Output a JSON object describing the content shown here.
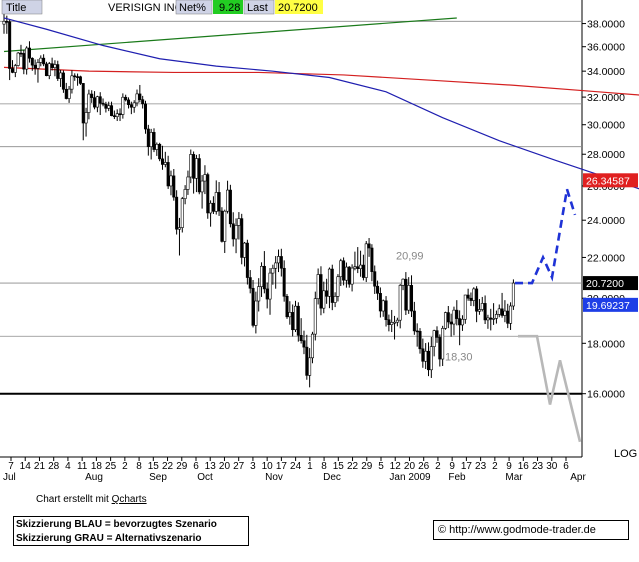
{
  "header": {
    "title_label": "Title",
    "title_value": "VERISIGN INC",
    "net_label": "Net%",
    "net_value": "9.28",
    "last_label": "Last",
    "last_value": "20.7200"
  },
  "footer": {
    "credit_prefix": "Chart erstellt mit ",
    "credit_link": "Qcharts",
    "legend_line1": "Skizzierung BLAU = bevorzugtes Szenario",
    "legend_line2": "Skizzierung GRAU = Alternativszenario",
    "site": "© http://www.godmode-trader.de"
  },
  "colors": {
    "sma_short": "#1f1fb0",
    "sma_long": "#d42020",
    "trendline": "#1a7a1a",
    "candle_down": "#000000",
    "candle_up": "#ffffff",
    "scenario_blue": "#1f33d6",
    "scenario_grey": "#b8b8b8",
    "tag_red": "#e02020",
    "tag_blue": "#1e3ee6",
    "tag_black": "#000000",
    "net_bg": "#22cc22",
    "last_bg": "#ffff44"
  },
  "chart_data": {
    "type": "candlestick",
    "y_scale": "log",
    "ylim": [
      13.8,
      39.5
    ],
    "y_ticks": [
      16,
      18,
      20,
      22,
      24,
      26,
      28,
      30,
      32,
      34,
      36,
      38
    ],
    "y_tick_labels": [
      "16.0000",
      "18.0000",
      "20.0000",
      "22.0000",
      "24.0000",
      "26.0000",
      "28.0000",
      "30.0000",
      "32.0000",
      "34.0000",
      "36.0000",
      "38.0000"
    ],
    "y_axis_extra_label": "LOG",
    "horizontal_lines": [
      38.2,
      31.5,
      28.5,
      20.72,
      18.3,
      16.0
    ],
    "x_day_labels": [
      "7",
      "14",
      "21",
      "28",
      "4",
      "11",
      "18",
      "25",
      "2",
      "8",
      "15",
      "22",
      "29",
      "6",
      "13",
      "20",
      "27",
      "3",
      "10",
      "17",
      "24",
      "1",
      "8",
      "15",
      "22",
      "29",
      "5",
      "12",
      "20",
      "26",
      "2",
      "9",
      "17",
      "23",
      "2",
      "9",
      "16",
      "23",
      "30",
      "6"
    ],
    "x_month_labels": [
      "Jul",
      "Aug",
      "Sep",
      "Oct",
      "Nov",
      "Dec",
      "Jan 2009",
      "Feb",
      "Mar",
      "Apr"
    ],
    "annotations": [
      "20,99",
      "18,30"
    ],
    "price_tags": [
      {
        "value": "26.34587",
        "color_key": "tag_red"
      },
      {
        "value": "20.7200",
        "color_key": "tag_black"
      },
      {
        "value": "19.69237",
        "color_key": "tag_blue"
      }
    ],
    "sma_short": [
      [
        0,
        38.5
      ],
      [
        15,
        37.5
      ],
      [
        35,
        36.1
      ],
      [
        55,
        35.0
      ],
      [
        75,
        34.4
      ],
      [
        95,
        34.0
      ],
      [
        115,
        33.5
      ],
      [
        135,
        32.4
      ],
      [
        155,
        30.5
      ],
      [
        175,
        28.9
      ],
      [
        195,
        27.6
      ],
      [
        215,
        26.4
      ],
      [
        235,
        25.2
      ],
      [
        255,
        24.2
      ],
      [
        275,
        23.2
      ],
      [
        295,
        22.3
      ],
      [
        315,
        21.3
      ],
      [
        335,
        20.8
      ],
      [
        355,
        20.9
      ],
      [
        375,
        20.8
      ],
      [
        395,
        20.5
      ],
      [
        415,
        20.2
      ],
      [
        435,
        19.9
      ],
      [
        455,
        19.8
      ],
      [
        475,
        19.6
      ],
      [
        495,
        19.6
      ],
      [
        510,
        19.69
      ]
    ],
    "sma_long": [
      [
        0,
        34.3
      ],
      [
        30,
        34.0
      ],
      [
        60,
        33.9
      ],
      [
        90,
        33.9
      ],
      [
        120,
        33.7
      ],
      [
        150,
        33.3
      ],
      [
        180,
        32.9
      ],
      [
        210,
        32.4
      ],
      [
        240,
        31.9
      ],
      [
        270,
        31.4
      ],
      [
        300,
        30.8
      ],
      [
        330,
        30.1
      ],
      [
        360,
        29.3
      ],
      [
        390,
        28.5
      ],
      [
        420,
        27.8
      ],
      [
        450,
        27.2
      ],
      [
        480,
        26.7
      ],
      [
        508,
        26.35
      ]
    ],
    "trendline": [
      [
        0,
        35.6
      ],
      [
        160,
        38.5
      ]
    ],
    "scenario_blue": [
      [
        515,
        20.72
      ],
      [
        532,
        20.72
      ],
      [
        543,
        22.0
      ],
      [
        552,
        21.0
      ],
      [
        567,
        25.8
      ],
      [
        575,
        24.3
      ]
    ],
    "scenario_grey": [
      [
        518,
        18.3
      ],
      [
        537,
        18.3
      ],
      [
        550,
        15.6
      ],
      [
        560,
        17.3
      ],
      [
        580,
        14.3
      ]
    ],
    "ohlc": [
      [
        37.95,
        39.05,
        37.11,
        38.2
      ],
      [
        38.2,
        38.71,
        37.1,
        38.15
      ],
      [
        38.15,
        38.38,
        33.3,
        34.21
      ],
      [
        34.21,
        34.89,
        33.84,
        33.9
      ],
      [
        33.9,
        34.58,
        33.53,
        34.45
      ],
      [
        34.45,
        35.56,
        34.37,
        35.47
      ],
      [
        35.47,
        36.16,
        35.14,
        35.44
      ],
      [
        35.44,
        35.72,
        33.76,
        34.16
      ],
      [
        34.16,
        36.04,
        33.73,
        35.89
      ],
      [
        35.89,
        36.46,
        34.69,
        35.04
      ],
      [
        35.04,
        35.12,
        34.03,
        34.48
      ],
      [
        34.48,
        34.94,
        33.72,
        34.22
      ],
      [
        34.22,
        34.97,
        33.1,
        34.7
      ],
      [
        34.7,
        35.28,
        34.39,
        35.05
      ],
      [
        35.05,
        35.37,
        34.4,
        34.58
      ],
      [
        34.58,
        34.75,
        33.6,
        33.64
      ],
      [
        33.64,
        34.74,
        33.37,
        34.6
      ],
      [
        34.6,
        35.09,
        34.05,
        34.28
      ],
      [
        34.28,
        34.88,
        33.6,
        34.53
      ],
      [
        34.53,
        34.84,
        33.23,
        33.42
      ],
      [
        33.42,
        34.1,
        32.77,
        33.86
      ],
      [
        33.86,
        34.06,
        32.32,
        32.59
      ],
      [
        32.59,
        33.08,
        31.83,
        31.89
      ],
      [
        31.89,
        32.84,
        31.57,
        32.6
      ],
      [
        32.6,
        34.07,
        32.27,
        33.63
      ],
      [
        33.63,
        33.83,
        33.24,
        33.57
      ],
      [
        33.57,
        33.81,
        32.86,
        33.56
      ],
      [
        33.56,
        33.64,
        32.92,
        33.04
      ],
      [
        33.04,
        33.07,
        28.93,
        30.12
      ],
      [
        30.12,
        31.21,
        29.18,
        30.87
      ],
      [
        30.87,
        32.56,
        30.38,
        32.23
      ],
      [
        32.23,
        32.52,
        31.57,
        31.96
      ],
      [
        31.96,
        32.45,
        31.1,
        31.26
      ],
      [
        31.26,
        32.1,
        30.89,
        32.03
      ],
      [
        32.03,
        32.37,
        30.69,
        31.55
      ],
      [
        31.55,
        31.9,
        31.32,
        31.47
      ],
      [
        31.47,
        31.65,
        30.87,
        31.17
      ],
      [
        31.17,
        31.66,
        30.97,
        31.37
      ],
      [
        31.37,
        31.66,
        30.6,
        30.64
      ],
      [
        30.64,
        31.01,
        30.4,
        30.57
      ],
      [
        30.57,
        31.1,
        30.26,
        30.78
      ],
      [
        30.78,
        31.17,
        30.26,
        30.73
      ],
      [
        30.73,
        32.28,
        30.43,
        31.99
      ],
      [
        31.99,
        32.18,
        31.68,
        31.79
      ],
      [
        31.79,
        31.98,
        31.16,
        31.44
      ],
      [
        31.44,
        31.66,
        30.75,
        31.25
      ],
      [
        31.25,
        31.77,
        30.85,
        31.57
      ],
      [
        31.57,
        32.57,
        31.32,
        32.24
      ],
      [
        32.24,
        32.92,
        31.61,
        31.81
      ],
      [
        31.81,
        32.09,
        31.16,
        31.5
      ],
      [
        31.5,
        31.73,
        29.37,
        29.7
      ],
      [
        29.7,
        29.99,
        27.91,
        28.5
      ],
      [
        28.5,
        29.71,
        27.66,
        29.47
      ],
      [
        29.47,
        29.75,
        28.14,
        28.31
      ],
      [
        28.31,
        28.78,
        27.89,
        28.66
      ],
      [
        28.66,
        28.76,
        27.55,
        27.7
      ],
      [
        27.7,
        28.56,
        27.0,
        27.34
      ],
      [
        27.34,
        28.16,
        27.16,
        27.47
      ],
      [
        27.47,
        27.9,
        25.82,
        26.0
      ],
      [
        26.0,
        26.95,
        25.44,
        26.62
      ],
      [
        26.62,
        27.05,
        25.12,
        25.33
      ],
      [
        25.33,
        25.74,
        23.21,
        23.5
      ],
      [
        23.5,
        24.13,
        22.1,
        23.59
      ],
      [
        23.59,
        25.34,
        23.32,
        25.24
      ],
      [
        25.24,
        26.05,
        24.91,
        25.79
      ],
      [
        25.79,
        26.95,
        25.46,
        26.55
      ],
      [
        26.55,
        28.31,
        26.17,
        27.99
      ],
      [
        27.99,
        28.18,
        25.54,
        26.47
      ],
      [
        26.47,
        27.96,
        25.63,
        27.72
      ],
      [
        27.72,
        28.01,
        25.5,
        25.64
      ],
      [
        25.64,
        26.67,
        24.66,
        26.3
      ],
      [
        26.3,
        27.29,
        25.51,
        26.7
      ],
      [
        26.7,
        26.82,
        24.08,
        24.41
      ],
      [
        24.41,
        25.14,
        23.64,
        24.97
      ],
      [
        24.97,
        25.38,
        24.35,
        24.5
      ],
      [
        24.5,
        26.34,
        24.32,
        25.61
      ],
      [
        25.61,
        26.24,
        24.24,
        24.52
      ],
      [
        24.52,
        24.74,
        22.78,
        22.84
      ],
      [
        22.84,
        24.6,
        22.23,
        24.51
      ],
      [
        24.51,
        26.32,
        24.38,
        25.75
      ],
      [
        25.75,
        26.07,
        23.6,
        23.8
      ],
      [
        23.8,
        24.45,
        22.57,
        22.97
      ],
      [
        22.97,
        24.1,
        22.22,
        23.71
      ],
      [
        23.71,
        24.46,
        22.94,
        24.09
      ],
      [
        24.09,
        24.36,
        21.65,
        22.0
      ],
      [
        22.0,
        22.81,
        21.54,
        22.75
      ],
      [
        22.75,
        22.93,
        20.65,
        20.99
      ],
      [
        20.99,
        21.36,
        20.23,
        20.47
      ],
      [
        20.47,
        20.87,
        18.68,
        18.77
      ],
      [
        18.77,
        20.31,
        18.42,
        19.87
      ],
      [
        19.87,
        20.96,
        19.39,
        20.55
      ],
      [
        20.55,
        21.75,
        20.06,
        21.55
      ],
      [
        21.55,
        22.33,
        20.23,
        20.44
      ],
      [
        20.44,
        20.75,
        19.53,
        19.96
      ],
      [
        19.96,
        21.46,
        19.24,
        21.21
      ],
      [
        21.21,
        21.63,
        20.64,
        21.45
      ],
      [
        21.45,
        22.07,
        20.45,
        21.72
      ],
      [
        21.72,
        22.41,
        21.26,
        22.05
      ],
      [
        22.05,
        22.45,
        21.04,
        21.45
      ],
      [
        21.45,
        21.85,
        19.84,
        20.09
      ],
      [
        20.09,
        20.2,
        19.06,
        19.15
      ],
      [
        19.15,
        19.86,
        18.8,
        19.35
      ],
      [
        19.35,
        19.71,
        18.29,
        18.58
      ],
      [
        18.58,
        19.88,
        18.48,
        19.63
      ],
      [
        19.63,
        19.81,
        18.07,
        18.34
      ],
      [
        18.34,
        19.09,
        17.99,
        18.11
      ],
      [
        18.11,
        18.54,
        17.55,
        17.84
      ],
      [
        17.84,
        18.36,
        16.53,
        16.7
      ],
      [
        16.7,
        17.8,
        16.24,
        17.4
      ],
      [
        17.4,
        18.49,
        17.18,
        18.39
      ],
      [
        18.39,
        20.31,
        18.12,
        19.98
      ],
      [
        19.98,
        21.44,
        19.71,
        21.14
      ],
      [
        21.14,
        21.55,
        19.22,
        19.54
      ],
      [
        19.54,
        20.79,
        19.31,
        20.35
      ],
      [
        20.35,
        20.93,
        19.74,
        20.09
      ],
      [
        20.09,
        21.49,
        19.54,
        21.41
      ],
      [
        21.41,
        21.63,
        19.45,
        19.8
      ],
      [
        19.8,
        20.28,
        19.59,
        20.09
      ],
      [
        20.09,
        21.16,
        19.85,
        21.03
      ],
      [
        21.03,
        21.93,
        20.58,
        21.83
      ],
      [
        21.83,
        22.0,
        20.61,
        20.86
      ],
      [
        20.86,
        21.74,
        20.5,
        21.51
      ],
      [
        21.51,
        21.56,
        20.5,
        20.67
      ],
      [
        20.67,
        21.65,
        20.32,
        21.46
      ],
      [
        21.46,
        22.3,
        21.35,
        21.53
      ],
      [
        21.53,
        22.54,
        21.21,
        21.43
      ],
      [
        21.43,
        22.35,
        21.03,
        21.61
      ],
      [
        21.61,
        22.14,
        20.85,
        20.99
      ],
      [
        20.99,
        22.86,
        20.77,
        22.71
      ],
      [
        22.71,
        23.02,
        22.03,
        22.49
      ],
      [
        22.49,
        22.69,
        20.81,
        21.28
      ],
      [
        21.28,
        21.59,
        20.2,
        20.57
      ],
      [
        20.57,
        20.84,
        19.92,
        20.23
      ],
      [
        20.23,
        20.51,
        19.12,
        19.41
      ],
      [
        19.41,
        19.94,
        19.15,
        19.88
      ],
      [
        19.88,
        20.1,
        18.72,
        19.02
      ],
      [
        19.02,
        19.25,
        18.51,
        18.8
      ],
      [
        18.8,
        19.46,
        18.48,
        18.9
      ],
      [
        18.9,
        19.19,
        18.16,
        18.91
      ],
      [
        18.91,
        19.11,
        18.73,
        19.0
      ],
      [
        19.0,
        20.68,
        18.64,
        20.61
      ],
      [
        20.61,
        20.95,
        20.38,
        20.91
      ],
      [
        20.91,
        21.26,
        19.23,
        19.45
      ],
      [
        19.45,
        21.01,
        19.28,
        20.61
      ],
      [
        20.61,
        21.1,
        19.14,
        19.41
      ],
      [
        19.41,
        19.83,
        18.36,
        18.53
      ],
      [
        18.53,
        18.86,
        17.86,
        18.51
      ],
      [
        18.51,
        18.65,
        17.57,
        17.77
      ],
      [
        17.77,
        18.2,
        17.0,
        17.26
      ],
      [
        17.26,
        18.01,
        16.95,
        17.67
      ],
      [
        17.67,
        18.04,
        16.67,
        16.92
      ],
      [
        16.92,
        18.27,
        16.6,
        17.86
      ],
      [
        17.86,
        18.58,
        17.46,
        18.54
      ],
      [
        18.54,
        18.73,
        18.02,
        18.25
      ],
      [
        18.25,
        18.38,
        17.05,
        17.35
      ],
      [
        17.35,
        18.75,
        17.07,
        18.64
      ],
      [
        18.64,
        19.38,
        18.58,
        19.34
      ],
      [
        19.34,
        19.64,
        18.65,
        18.92
      ],
      [
        18.92,
        19.29,
        18.28,
        18.83
      ],
      [
        18.83,
        19.61,
        18.34,
        19.45
      ],
      [
        19.45,
        19.91,
        18.77,
        19.07
      ],
      [
        19.07,
        19.44,
        17.92,
        18.79
      ],
      [
        18.79,
        19.22,
        18.53,
        19.04
      ],
      [
        19.04,
        20.16,
        18.84,
        20.15
      ],
      [
        20.15,
        20.45,
        19.88,
        20.0
      ],
      [
        20.0,
        20.27,
        19.64,
        19.89
      ],
      [
        19.89,
        20.52,
        19.63,
        20.44
      ],
      [
        20.44,
        20.57,
        18.91,
        19.4
      ],
      [
        19.4,
        19.96,
        19.24,
        19.48
      ],
      [
        19.48,
        20.06,
        19.39,
        19.76
      ],
      [
        19.76,
        20.13,
        18.83,
        19.01
      ],
      [
        19.01,
        19.24,
        18.62,
        19.1
      ],
      [
        19.1,
        19.51,
        18.55,
        19.04
      ],
      [
        19.04,
        19.77,
        18.79,
        19.08
      ],
      [
        19.08,
        19.43,
        18.85,
        19.26
      ],
      [
        19.26,
        19.71,
        19.13,
        19.51
      ],
      [
        19.51,
        20.25,
        19.11,
        19.21
      ],
      [
        19.21,
        19.91,
        18.91,
        19.41
      ],
      [
        19.41,
        19.74,
        18.65,
        18.86
      ],
      [
        18.86,
        19.81,
        18.57,
        19.64
      ],
      [
        19.64,
        20.9,
        19.46,
        20.72
      ]
    ]
  }
}
